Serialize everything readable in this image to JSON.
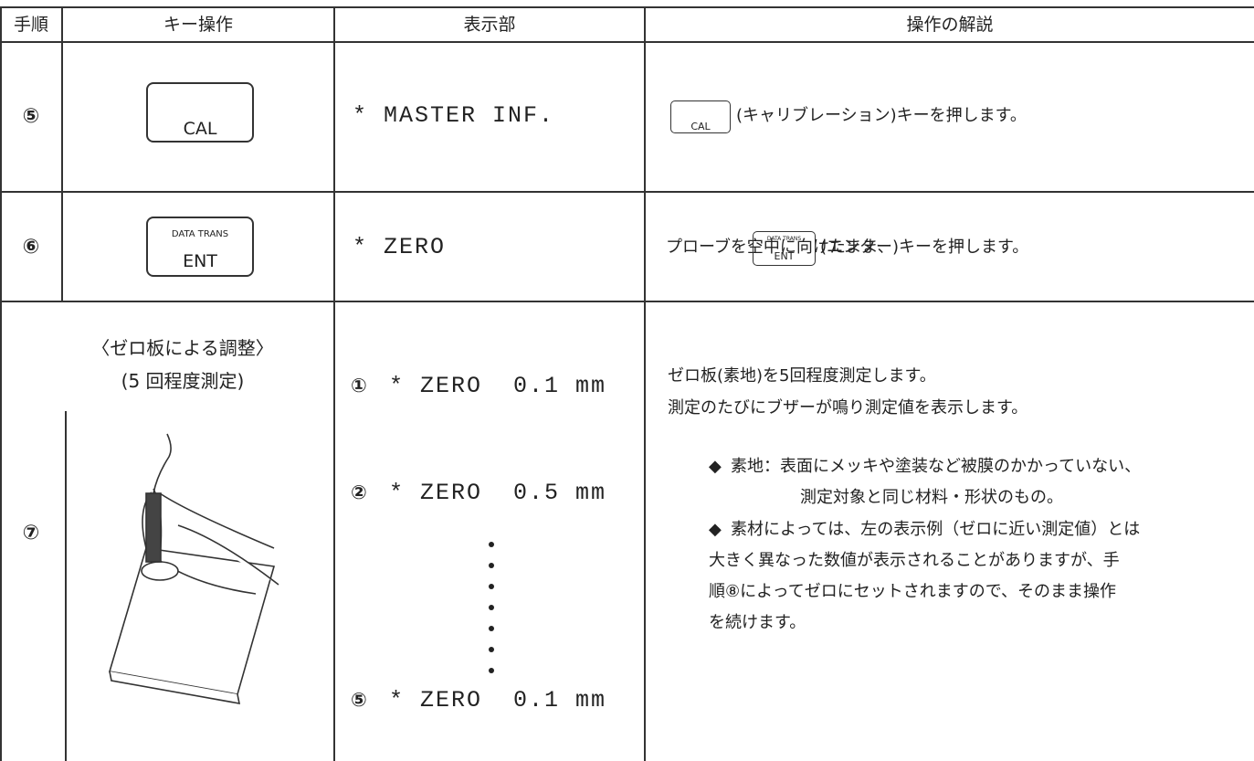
{
  "header": {
    "columns": [
      "手順",
      "キー操作",
      "表示部",
      "操作の解説"
    ]
  },
  "rows": [
    {
      "step": "⑤",
      "key": {
        "label": "CAL"
      },
      "display": [
        "* MASTER INF."
      ],
      "explanation": {
        "key_icon": {
          "label": "CAL"
        },
        "text_after": "(キャリブレーション)キーを押します。"
      }
    },
    {
      "step": "⑥",
      "key": {
        "top": "DATA TRANS",
        "label": "ENT"
      },
      "display": [
        "* ZERO"
      ],
      "explanation": {
        "text_before": "プローブを空中に向けたまま、",
        "key_icon": {
          "top": "DATA TRANS",
          "label": "ENT"
        },
        "text_after": "(エンター)キーを押します。"
      }
    },
    {
      "step": "⑦",
      "key": {
        "heading": "〈ゼロ板による調整〉",
        "subheading": "(5 回程度測定)"
      },
      "display": [
        {
          "num": "①",
          "text": "* ZERO  0.1 mm"
        },
        {
          "num": "②",
          "text": "* ZERO  0.5 mm"
        },
        {
          "num": "⑤",
          "text": "* ZERO  0.1 mm"
        }
      ],
      "explanation": {
        "lines": [
          "ゼロ板(素地)を5回程度測定します。",
          "測定のたびにブザーが鳴り測定値を表示します。"
        ],
        "bullets": [
          {
            "marker": "◆",
            "lines": [
              "素地：表面にメッキや塗装など被膜のかかっていない、",
              "測定対象と同じ材料・形状のもの。"
            ]
          },
          {
            "marker": "◆",
            "lines": [
              "素材によっては、左の表示例（ゼロに近い測定値）とは",
              "大きく異なった数値が表示されることがありますが、手",
              "順⑧によってゼロにセットされますので、そのまま操作",
              "を続けます。"
            ]
          }
        ]
      }
    }
  ]
}
